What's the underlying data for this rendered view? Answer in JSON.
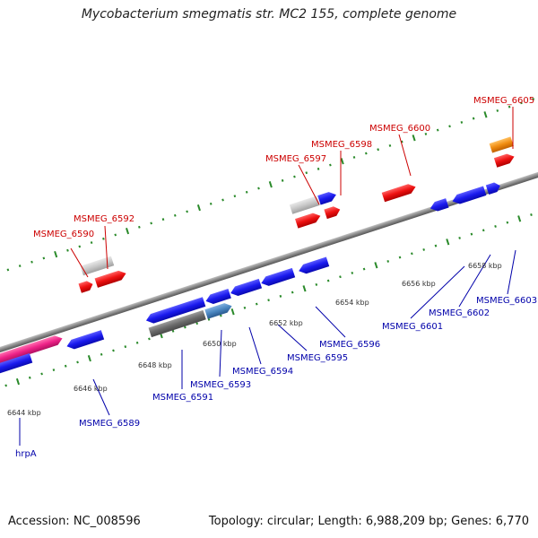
{
  "title": "Mycobacterium smegmatis str. MC2 155, complete genome",
  "footer": {
    "accession": "Accession: NC_008596",
    "stats": "Topology: circular; Length: 6,988,209 bp; Genes: 6,770"
  },
  "colors": {
    "backbone": "#888888",
    "tick": "#2a8a2a",
    "forward_label": "#cc0000",
    "reverse_label": "#0000aa",
    "blue": "#1a1aee",
    "red": "#ee1111",
    "light_gray": "#c8c8c8",
    "dark_gray": "#6a6a6a",
    "steel_blue": "#4a86c0",
    "pink": "#ee2288",
    "orange": "#f08c10"
  },
  "scale_labels": [
    "6644 kbp",
    "6646 kbp",
    "6648 kbp",
    "6650 kbp",
    "6652 kbp",
    "6654 kbp",
    "6656 kbp",
    "6658 kbp"
  ],
  "gene_labels": [
    {
      "text": "MSMEG_6590",
      "strand": "forward"
    },
    {
      "text": "MSMEG_6592",
      "strand": "forward"
    },
    {
      "text": "MSMEG_6597",
      "strand": "forward"
    },
    {
      "text": "MSMEG_6598",
      "strand": "forward"
    },
    {
      "text": "MSMEG_6600",
      "strand": "forward"
    },
    {
      "text": "MSMEG_6605",
      "strand": "forward"
    },
    {
      "text": "hrpA",
      "strand": "reverse"
    },
    {
      "text": "MSMEG_6589",
      "strand": "reverse"
    },
    {
      "text": "MSMEG_6591",
      "strand": "reverse"
    },
    {
      "text": "MSMEG_6593",
      "strand": "reverse"
    },
    {
      "text": "MSMEG_6594",
      "strand": "reverse"
    },
    {
      "text": "MSMEG_6595",
      "strand": "reverse"
    },
    {
      "text": "MSMEG_6596",
      "strand": "reverse"
    },
    {
      "text": "MSMEG_6601",
      "strand": "reverse"
    },
    {
      "text": "MSMEG_6602",
      "strand": "reverse"
    },
    {
      "text": "MSMEG_6603",
      "strand": "reverse"
    }
  ]
}
